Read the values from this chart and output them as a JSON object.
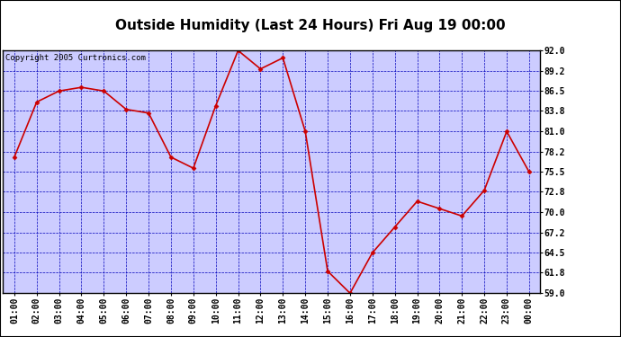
{
  "title": "Outside Humidity (Last 24 Hours) Fri Aug 19 00:00",
  "copyright": "Copyright 2005 Curtronics.com",
  "x_labels": [
    "01:00",
    "02:00",
    "03:00",
    "04:00",
    "05:00",
    "06:00",
    "07:00",
    "08:00",
    "09:00",
    "10:00",
    "11:00",
    "12:00",
    "13:00",
    "14:00",
    "15:00",
    "16:00",
    "17:00",
    "18:00",
    "19:00",
    "20:00",
    "21:00",
    "22:00",
    "23:00",
    "00:00"
  ],
  "y_values": [
    77.5,
    85.0,
    86.5,
    87.0,
    86.5,
    84.0,
    83.5,
    77.5,
    76.0,
    84.5,
    92.0,
    89.5,
    91.0,
    81.0,
    62.0,
    59.0,
    64.5,
    68.0,
    71.5,
    70.5,
    69.5,
    73.0,
    81.0,
    75.5
  ],
  "line_color": "#cc0000",
  "marker": "D",
  "marker_size": 2.5,
  "figure_bg_color": "#ffffff",
  "plot_bg_color": "#ccccff",
  "grid_color": "#0000bb",
  "border_color": "#000000",
  "title_color": "#000000",
  "title_bg_color": "#ffffff",
  "ylim": [
    59.0,
    92.0
  ],
  "yticks": [
    59.0,
    61.8,
    64.5,
    67.2,
    70.0,
    72.8,
    75.5,
    78.2,
    81.0,
    83.8,
    86.5,
    89.2,
    92.0
  ],
  "title_fontsize": 11,
  "copyright_fontsize": 6.5,
  "tick_fontsize": 7
}
